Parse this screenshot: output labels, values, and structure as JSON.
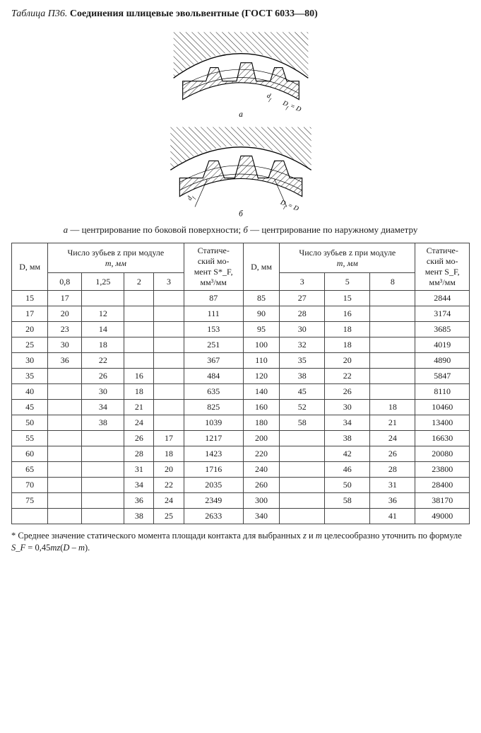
{
  "title": {
    "label": "Таблица П36.",
    "main": "Соединения шлицевые эвольвентные (ГОСТ 6033—80)"
  },
  "figure": {
    "label_a": "а",
    "label_b": "б",
    "dim_df": "d_f",
    "dim_Df_eq_D": "D_f = D"
  },
  "caption": {
    "a_it": "а",
    "a_txt": " — центрирование по боковой поверхности; ",
    "b_it": "б",
    "b_txt": " — центрирование по наружному диаметру"
  },
  "headers": {
    "D_mm": "D, мм",
    "teeth_line1": "Число зубьев z при модуле",
    "teeth_line2": "m, мм",
    "static_l1": "Статиче-",
    "static_l2": "ский мо-",
    "static_left_l3": "мент S*_F,",
    "static_right_l3": "мент S_F,",
    "static_l4": "мм³/мм",
    "m08": "0,8",
    "m125": "1,25",
    "m2": "2",
    "m3": "3",
    "m5": "5",
    "m8": "8"
  },
  "left_rows": [
    {
      "D": "15",
      "v": [
        "17",
        "",
        "",
        ""
      ],
      "S": "87"
    },
    {
      "D": "17",
      "v": [
        "20",
        "12",
        "",
        ""
      ],
      "S": "111"
    },
    {
      "D": "20",
      "v": [
        "23",
        "14",
        "",
        ""
      ],
      "S": "153"
    },
    {
      "D": "25",
      "v": [
        "30",
        "18",
        "",
        ""
      ],
      "S": "251"
    },
    {
      "D": "30",
      "v": [
        "36",
        "22",
        "",
        ""
      ],
      "S": "367"
    },
    {
      "D": "35",
      "v": [
        "",
        "26",
        "16",
        ""
      ],
      "S": "484"
    },
    {
      "D": "40",
      "v": [
        "",
        "30",
        "18",
        ""
      ],
      "S": "635"
    },
    {
      "D": "45",
      "v": [
        "",
        "34",
        "21",
        ""
      ],
      "S": "825"
    },
    {
      "D": "50",
      "v": [
        "",
        "38",
        "24",
        ""
      ],
      "S": "1039"
    },
    {
      "D": "55",
      "v": [
        "",
        "",
        "26",
        "17"
      ],
      "S": "1217"
    },
    {
      "D": "60",
      "v": [
        "",
        "",
        "28",
        "18"
      ],
      "S": "1423"
    },
    {
      "D": "65",
      "v": [
        "",
        "",
        "31",
        "20"
      ],
      "S": "1716"
    },
    {
      "D": "70",
      "v": [
        "",
        "",
        "34",
        "22"
      ],
      "S": "2035"
    },
    {
      "D": "75",
      "v": [
        "",
        "",
        "36",
        "24"
      ],
      "S": "2349"
    },
    {
      "D": "",
      "v": [
        "",
        "",
        "38",
        "25"
      ],
      "S": "2633"
    }
  ],
  "right_rows": [
    {
      "D": "85",
      "v": [
        "27",
        "15",
        ""
      ],
      "S": "2844"
    },
    {
      "D": "90",
      "v": [
        "28",
        "16",
        ""
      ],
      "S": "3174"
    },
    {
      "D": "95",
      "v": [
        "30",
        "18",
        ""
      ],
      "S": "3685"
    },
    {
      "D": "100",
      "v": [
        "32",
        "18",
        ""
      ],
      "S": "4019"
    },
    {
      "D": "110",
      "v": [
        "35",
        "20",
        ""
      ],
      "S": "4890"
    },
    {
      "D": "120",
      "v": [
        "38",
        "22",
        ""
      ],
      "S": "5847"
    },
    {
      "D": "140",
      "v": [
        "45",
        "26",
        ""
      ],
      "S": "8110"
    },
    {
      "D": "160",
      "v": [
        "52",
        "30",
        "18"
      ],
      "S": "10460"
    },
    {
      "D": "180",
      "v": [
        "58",
        "34",
        "21"
      ],
      "S": "13400"
    },
    {
      "D": "200",
      "v": [
        "",
        "38",
        "24"
      ],
      "S": "16630"
    },
    {
      "D": "220",
      "v": [
        "",
        "42",
        "26"
      ],
      "S": "20080"
    },
    {
      "D": "240",
      "v": [
        "",
        "46",
        "28"
      ],
      "S": "23800"
    },
    {
      "D": "260",
      "v": [
        "",
        "50",
        "31"
      ],
      "S": "28400"
    },
    {
      "D": "300",
      "v": [
        "",
        "58",
        "36"
      ],
      "S": "38170"
    },
    {
      "D": "340",
      "v": [
        "",
        "",
        "41"
      ],
      "S": "49000"
    }
  ],
  "footnote": {
    "star": "* ",
    "t1": "Среднее значение статического момента площади контакта для выбранных ",
    "z": "z",
    "t2": " и ",
    "m": "m",
    "t3": " целесообразно уточнить по формуле ",
    "Sf": "S_F",
    "t4": " = 0,45",
    "mz": "mz",
    "t5": "(",
    "D": "D",
    "t6": " – ",
    "mm": "m",
    "t7": ")."
  },
  "style": {
    "border_color": "#444444",
    "text_color": "#1a1a1a",
    "bg": "#ffffff",
    "font": "Times New Roman",
    "title_fs": 14,
    "table_fs": 12,
    "footnote_fs": 12.5
  }
}
